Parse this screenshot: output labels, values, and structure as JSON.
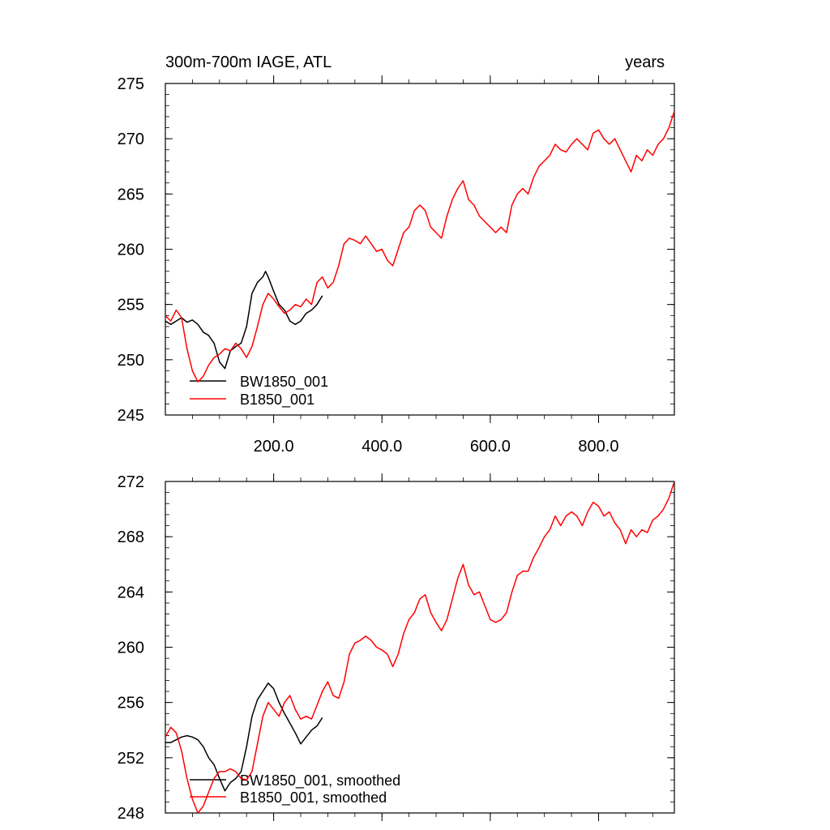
{
  "chart_data": [
    {
      "type": "line",
      "title_left": "300m-700m IAGE, ATL",
      "title_right": "years",
      "xlim": [
        0,
        940
      ],
      "ylim": [
        245,
        275
      ],
      "x_ticks": [
        200,
        400,
        600,
        800
      ],
      "x_tick_labels": [
        "200.0",
        "400.0",
        "600.0",
        "800.0"
      ],
      "y_ticks": [
        245,
        250,
        255,
        260,
        265,
        270,
        275
      ],
      "y_tick_labels": [
        "245",
        "250",
        "255",
        "260",
        "265",
        "270",
        "275"
      ],
      "legend_position": "bottom-left",
      "series": [
        {
          "name": "BW1850_001",
          "color": "#000000",
          "x": [
            0,
            10,
            20,
            30,
            40,
            50,
            60,
            70,
            80,
            90,
            100,
            110,
            120,
            130,
            140,
            150,
            160,
            170,
            180,
            185,
            190,
            200,
            210,
            220,
            230,
            240,
            250,
            260,
            270,
            280,
            290
          ],
          "y": [
            253.5,
            253.2,
            253.5,
            253.8,
            253.4,
            253.6,
            253.2,
            252.5,
            252.2,
            251.5,
            249.8,
            249.2,
            250.8,
            251.2,
            251.5,
            253.0,
            256.0,
            257.0,
            257.5,
            258.0,
            257.5,
            256.2,
            255.0,
            254.5,
            253.5,
            253.2,
            253.5,
            254.2,
            254.5,
            255.0,
            255.8
          ]
        },
        {
          "name": "B1850_001",
          "color": "#ff0000",
          "x": [
            0,
            10,
            20,
            30,
            40,
            50,
            60,
            70,
            80,
            90,
            100,
            110,
            120,
            130,
            140,
            150,
            160,
            170,
            180,
            190,
            200,
            210,
            220,
            230,
            240,
            250,
            260,
            270,
            280,
            290,
            300,
            310,
            320,
            330,
            340,
            350,
            360,
            370,
            380,
            390,
            400,
            410,
            420,
            430,
            440,
            450,
            460,
            470,
            480,
            490,
            500,
            510,
            520,
            530,
            540,
            550,
            560,
            570,
            580,
            590,
            600,
            610,
            620,
            630,
            640,
            650,
            660,
            670,
            680,
            690,
            700,
            710,
            720,
            730,
            740,
            750,
            760,
            770,
            780,
            790,
            800,
            810,
            820,
            830,
            840,
            850,
            860,
            870,
            880,
            890,
            900,
            910,
            920,
            930,
            940
          ],
          "y": [
            254.0,
            253.5,
            254.5,
            253.8,
            251.0,
            249.0,
            248.0,
            248.5,
            249.5,
            250.2,
            250.5,
            251.0,
            250.8,
            251.5,
            251.0,
            250.2,
            251.2,
            253.0,
            255.0,
            256.0,
            255.5,
            254.8,
            254.2,
            254.5,
            255.0,
            254.8,
            255.5,
            255.0,
            257.0,
            257.5,
            256.5,
            257.0,
            258.5,
            260.5,
            261.0,
            260.8,
            260.5,
            261.2,
            260.5,
            259.8,
            260.0,
            259.0,
            258.5,
            260.0,
            261.5,
            262.0,
            263.5,
            264.0,
            263.5,
            262.0,
            261.5,
            261.0,
            263.0,
            264.5,
            265.5,
            266.2,
            264.5,
            264.0,
            263.0,
            262.5,
            262.0,
            261.5,
            262.0,
            261.5,
            264.0,
            265.0,
            265.5,
            265.0,
            266.5,
            267.5,
            268.0,
            268.5,
            269.5,
            269.0,
            268.8,
            269.5,
            270.0,
            269.5,
            269.0,
            270.5,
            270.8,
            270.0,
            269.5,
            270.0,
            269.0,
            268.0,
            267.0,
            268.5,
            268.0,
            269.0,
            268.5,
            269.5,
            270.0,
            271.0,
            272.5
          ]
        }
      ]
    },
    {
      "type": "line",
      "title_left": "",
      "title_right": "",
      "xlim": [
        0,
        940
      ],
      "ylim": [
        248,
        272
      ],
      "x_ticks": [
        200,
        400,
        600,
        800
      ],
      "x_tick_labels": [],
      "y_ticks": [
        248,
        252,
        256,
        260,
        264,
        268,
        272
      ],
      "y_tick_labels": [
        "248",
        "252",
        "256",
        "260",
        "264",
        "268",
        "272"
      ],
      "legend_position": "bottom-left",
      "series": [
        {
          "name": "BW1850_001, smoothed",
          "color": "#000000",
          "x": [
            0,
            10,
            20,
            30,
            40,
            50,
            60,
            70,
            80,
            90,
            100,
            110,
            120,
            130,
            140,
            150,
            160,
            170,
            180,
            190,
            200,
            210,
            220,
            230,
            240,
            250,
            260,
            270,
            280,
            290
          ],
          "y": [
            253.1,
            253.1,
            253.3,
            253.5,
            253.6,
            253.5,
            253.3,
            252.8,
            252.0,
            251.5,
            250.5,
            249.6,
            250.2,
            250.5,
            251.0,
            252.8,
            255.0,
            256.2,
            256.8,
            257.4,
            257.0,
            256.0,
            255.2,
            254.5,
            253.8,
            253.0,
            253.5,
            254.0,
            254.3,
            254.9
          ]
        },
        {
          "name": "B1850_001, smoothed",
          "color": "#ff0000",
          "x": [
            0,
            10,
            20,
            30,
            40,
            50,
            60,
            70,
            80,
            90,
            100,
            110,
            120,
            130,
            140,
            150,
            160,
            170,
            180,
            190,
            200,
            210,
            220,
            230,
            240,
            250,
            260,
            270,
            280,
            290,
            300,
            310,
            320,
            330,
            340,
            350,
            360,
            370,
            380,
            390,
            400,
            410,
            420,
            430,
            440,
            450,
            460,
            470,
            480,
            490,
            500,
            510,
            520,
            530,
            540,
            550,
            560,
            570,
            580,
            590,
            600,
            610,
            620,
            630,
            640,
            650,
            660,
            670,
            680,
            690,
            700,
            710,
            720,
            730,
            740,
            750,
            760,
            770,
            780,
            790,
            800,
            810,
            820,
            830,
            840,
            850,
            860,
            870,
            880,
            890,
            900,
            910,
            920,
            930,
            940
          ],
          "y": [
            253.5,
            254.2,
            253.8,
            252.5,
            250.5,
            249.0,
            248.0,
            248.5,
            249.5,
            250.5,
            251.0,
            251.0,
            251.2,
            251.0,
            250.5,
            250.4,
            251.0,
            253.0,
            255.0,
            256.0,
            255.5,
            255.0,
            256.0,
            256.5,
            255.5,
            254.8,
            255.0,
            254.8,
            255.8,
            256.8,
            257.5,
            256.5,
            256.3,
            257.5,
            259.5,
            260.3,
            260.5,
            260.8,
            260.5,
            260.0,
            259.8,
            259.5,
            258.6,
            259.5,
            261.0,
            262.0,
            262.5,
            263.5,
            263.8,
            262.5,
            261.8,
            261.2,
            262.0,
            263.5,
            265.0,
            266.0,
            264.5,
            263.8,
            264.0,
            263.0,
            262.0,
            261.8,
            262.0,
            262.5,
            264.0,
            265.2,
            265.5,
            265.5,
            266.5,
            267.2,
            268.0,
            268.5,
            269.5,
            268.8,
            269.5,
            269.8,
            269.5,
            268.8,
            269.8,
            270.5,
            270.2,
            269.5,
            269.8,
            269.0,
            268.5,
            267.5,
            268.5,
            268.0,
            268.5,
            268.3,
            269.2,
            269.5,
            270.0,
            270.8,
            272.0
          ]
        }
      ]
    }
  ]
}
